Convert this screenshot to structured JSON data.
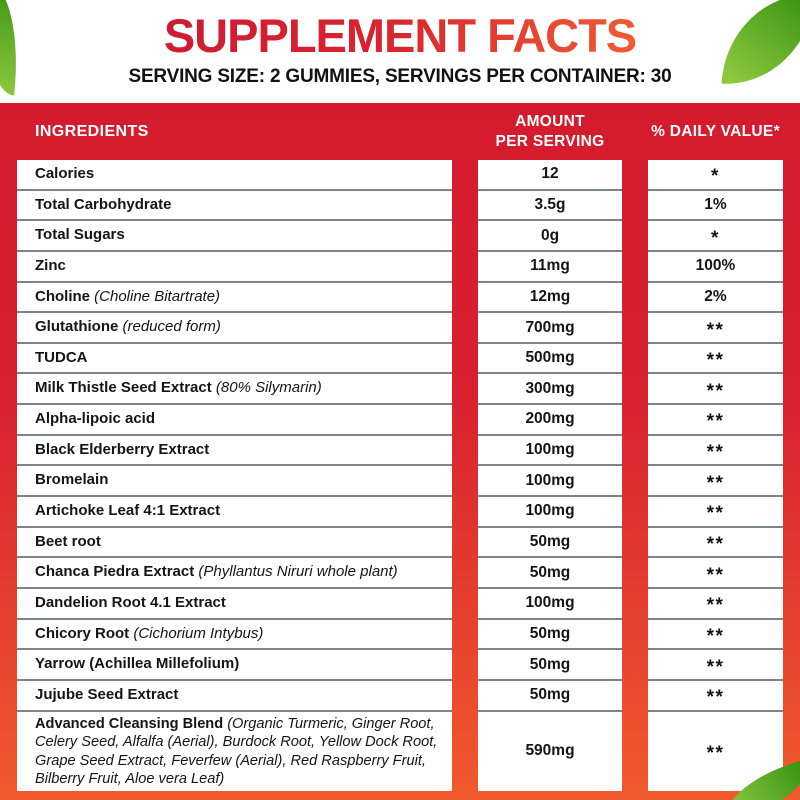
{
  "label": {
    "title": "SUPPLEMENT FACTS",
    "serving_line": "SERVING SIZE: 2 GUMMIES, SERVINGS PER CONTAINER: 30"
  },
  "colors": {
    "title_grad_start": "#ce1b33",
    "title_grad_end": "#ef5b33",
    "panel_top": "#d41b2e",
    "panel_bottom": "#f15a2e",
    "divider": "#7d838a",
    "leaf_dark": "#3c9414",
    "leaf_light": "#8cc83e"
  },
  "icons": {
    "leaf_top_left": "leaf",
    "leaf_top_right": "leaf",
    "leaf_bottom_right": "leaf"
  },
  "table": {
    "headers": {
      "ingredients": "INGREDIENTS",
      "amount_line1": "AMOUNT",
      "amount_line2": "PER SERVING",
      "daily_value": "% DAILY VALUE*"
    },
    "rows": [
      {
        "ingredient": "Calories",
        "note": "",
        "amount": "12",
        "daily_value": "*"
      },
      {
        "ingredient": "Total Carbohydrate",
        "note": "",
        "amount": "3.5g",
        "daily_value": "1%"
      },
      {
        "ingredient": "Total Sugars",
        "note": "",
        "amount": "0g",
        "daily_value": "*"
      },
      {
        "ingredient": "Zinc",
        "note": "",
        "amount": "11mg",
        "daily_value": "100%"
      },
      {
        "ingredient": "Choline",
        "note": "(Choline Bitartrate)",
        "amount": "12mg",
        "daily_value": "2%"
      },
      {
        "ingredient": "Glutathione",
        "note": "(reduced form)",
        "amount": "700mg",
        "daily_value": "**"
      },
      {
        "ingredient": "TUDCA",
        "note": "",
        "amount": "500mg",
        "daily_value": "**"
      },
      {
        "ingredient": "Milk Thistle Seed Extract",
        "note": "(80% Silymarin)",
        "amount": "300mg",
        "daily_value": "**"
      },
      {
        "ingredient": "Alpha-lipoic acid",
        "note": "",
        "amount": "200mg",
        "daily_value": "**"
      },
      {
        "ingredient": "Black Elderberry Extract",
        "note": "",
        "amount": "100mg",
        "daily_value": "**"
      },
      {
        "ingredient": "Bromelain",
        "note": "",
        "amount": "100mg",
        "daily_value": "**"
      },
      {
        "ingredient": "Artichoke Leaf 4:1 Extract",
        "note": "",
        "amount": "100mg",
        "daily_value": "**"
      },
      {
        "ingredient": "Beet root",
        "note": "",
        "amount": "50mg",
        "daily_value": "**"
      },
      {
        "ingredient": "Chanca Piedra Extract",
        "note": "(Phyllantus Niruri whole plant)",
        "amount": "50mg",
        "daily_value": "**"
      },
      {
        "ingredient": "Dandelion Root 4.1 Extract",
        "note": "",
        "amount": "100mg",
        "daily_value": "**"
      },
      {
        "ingredient": "Chicory Root",
        "note": "(Cichorium Intybus)",
        "amount": "50mg",
        "daily_value": "**"
      },
      {
        "ingredient": "Yarrow (Achillea Millefolium)",
        "note": "",
        "amount": "50mg",
        "daily_value": "**"
      },
      {
        "ingredient": "Jujube Seed Extract",
        "note": "",
        "amount": "50mg",
        "daily_value": "**"
      },
      {
        "ingredient": "Advanced Cleansing Blend",
        "note": "(Organic Turmeric, Ginger Root, Celery Seed, Alfalfa (Aerial), Burdock Root, Yellow Dock Root, Grape Seed Extract, Feverfew (Aerial), Red Raspberry Fruit, Bilberry Fruit, Aloe vera Leaf)",
        "amount": "590mg",
        "daily_value": "**",
        "tall": true
      }
    ]
  }
}
